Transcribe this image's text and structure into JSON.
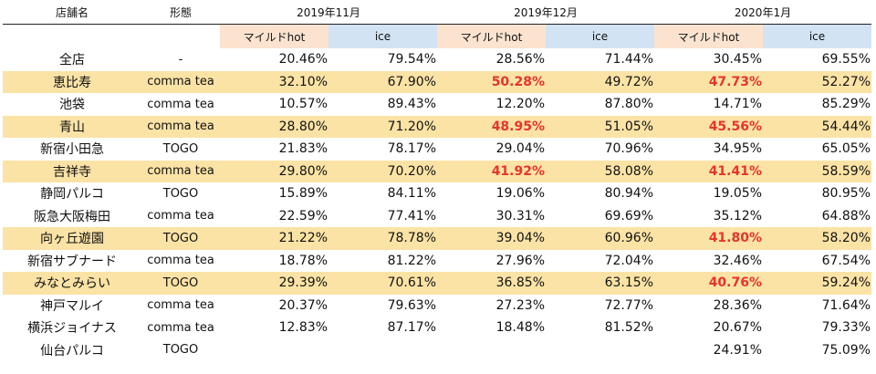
{
  "headers": {
    "store": "店舗名",
    "type": "形態",
    "months": [
      "2019年11月",
      "2019年12月",
      "2020年1月"
    ],
    "sub": {
      "hot": "マイルドhot",
      "ice": "ice"
    }
  },
  "colors": {
    "highlight_row": "#fbe3a6",
    "hot_header": "#fbe3cf",
    "ice_header": "#d2e3f3",
    "emphasis_text": "#e8332a"
  },
  "rows": [
    {
      "store": "全店",
      "type": "-",
      "highlight": false,
      "values": [
        "20.46%",
        "79.54%",
        "28.56%",
        "71.44%",
        "30.45%",
        "69.55%"
      ],
      "red": [
        false,
        false,
        false,
        false,
        false,
        false
      ]
    },
    {
      "store": "恵比寿",
      "type": "comma tea",
      "highlight": true,
      "values": [
        "32.10%",
        "67.90%",
        "50.28%",
        "49.72%",
        "47.73%",
        "52.27%"
      ],
      "red": [
        false,
        false,
        true,
        false,
        true,
        false
      ]
    },
    {
      "store": "池袋",
      "type": "comma tea",
      "highlight": false,
      "values": [
        "10.57%",
        "89.43%",
        "12.20%",
        "87.80%",
        "14.71%",
        "85.29%"
      ],
      "red": [
        false,
        false,
        false,
        false,
        false,
        false
      ]
    },
    {
      "store": "青山",
      "type": "comma tea",
      "highlight": true,
      "values": [
        "28.80%",
        "71.20%",
        "48.95%",
        "51.05%",
        "45.56%",
        "54.44%"
      ],
      "red": [
        false,
        false,
        true,
        false,
        true,
        false
      ]
    },
    {
      "store": "新宿小田急",
      "type": "TOGO",
      "highlight": false,
      "values": [
        "21.83%",
        "78.17%",
        "29.04%",
        "70.96%",
        "34.95%",
        "65.05%"
      ],
      "red": [
        false,
        false,
        false,
        false,
        false,
        false
      ]
    },
    {
      "store": "吉祥寺",
      "type": "comma tea",
      "highlight": true,
      "values": [
        "29.80%",
        "70.20%",
        "41.92%",
        "58.08%",
        "41.41%",
        "58.59%"
      ],
      "red": [
        false,
        false,
        true,
        false,
        true,
        false
      ]
    },
    {
      "store": "静岡パルコ",
      "type": "TOGO",
      "highlight": false,
      "values": [
        "15.89%",
        "84.11%",
        "19.06%",
        "80.94%",
        "19.05%",
        "80.95%"
      ],
      "red": [
        false,
        false,
        false,
        false,
        false,
        false
      ]
    },
    {
      "store": "阪急大阪梅田",
      "type": "comma tea",
      "highlight": false,
      "values": [
        "22.59%",
        "77.41%",
        "30.31%",
        "69.69%",
        "35.12%",
        "64.88%"
      ],
      "red": [
        false,
        false,
        false,
        false,
        false,
        false
      ]
    },
    {
      "store": "向ヶ丘遊園",
      "type": "TOGO",
      "highlight": true,
      "values": [
        "21.22%",
        "78.78%",
        "39.04%",
        "60.96%",
        "41.80%",
        "58.20%"
      ],
      "red": [
        false,
        false,
        false,
        false,
        true,
        false
      ]
    },
    {
      "store": "新宿サブナード",
      "type": "comma tea",
      "highlight": false,
      "values": [
        "18.78%",
        "81.22%",
        "27.96%",
        "72.04%",
        "32.46%",
        "67.54%"
      ],
      "red": [
        false,
        false,
        false,
        false,
        false,
        false
      ]
    },
    {
      "store": "みなとみらい",
      "type": "TOGO",
      "highlight": true,
      "values": [
        "29.39%",
        "70.61%",
        "36.85%",
        "63.15%",
        "40.76%",
        "59.24%"
      ],
      "red": [
        false,
        false,
        false,
        false,
        true,
        false
      ]
    },
    {
      "store": "神戸マルイ",
      "type": "comma tea",
      "highlight": false,
      "values": [
        "20.37%",
        "79.63%",
        "27.23%",
        "72.77%",
        "28.36%",
        "71.64%"
      ],
      "red": [
        false,
        false,
        false,
        false,
        false,
        false
      ]
    },
    {
      "store": "横浜ジョイナス",
      "type": "comma tea",
      "highlight": false,
      "values": [
        "12.83%",
        "87.17%",
        "18.48%",
        "81.52%",
        "20.67%",
        "79.33%"
      ],
      "red": [
        false,
        false,
        false,
        false,
        false,
        false
      ]
    },
    {
      "store": "仙台パルコ",
      "type": "TOGO",
      "highlight": false,
      "values": [
        "",
        "",
        "",
        "",
        "24.91%",
        "75.09%"
      ],
      "red": [
        false,
        false,
        false,
        false,
        false,
        false
      ]
    }
  ]
}
